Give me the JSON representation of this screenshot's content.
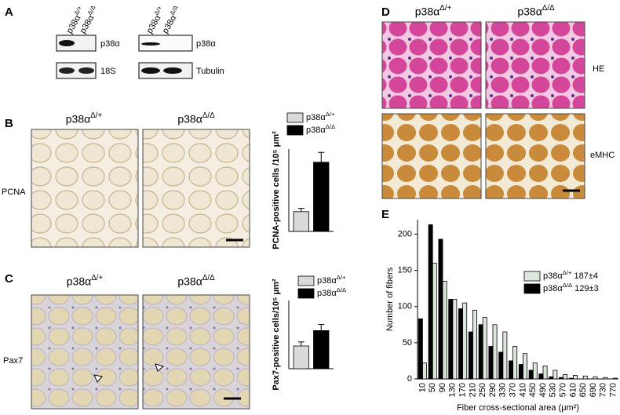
{
  "panels": {
    "A": {
      "letter": "A",
      "lanes": [
        "p38αΔ/+",
        "p38αΔ/Δ",
        "p38αΔ/+",
        "p38αΔ/Δ"
      ],
      "blots": [
        "p38α",
        "18S",
        "p38α",
        "Tubulin"
      ]
    },
    "B": {
      "letter": "B",
      "columns": [
        "p38αΔ/+",
        "p38αΔ/Δ"
      ],
      "row": "PCNA"
    },
    "C": {
      "letter": "C",
      "columns": [
        "p38αΔ/+",
        "p38αΔ/Δ"
      ],
      "row": "Pax7"
    },
    "D": {
      "letter": "D",
      "columns": [
        "p38αΔ/+",
        "p38αΔ/Δ"
      ],
      "rows": [
        "HE",
        "eMHC"
      ]
    },
    "E": {
      "letter": "E"
    }
  },
  "chart_data": [
    {
      "type": "bar",
      "y_label": "PCNA-positive cells /10⁵ μm²",
      "categories": [
        null
      ],
      "series": [
        {
          "name": "p38αΔ/+",
          "color": "#d9d9d9",
          "values": [
            12
          ],
          "errors": [
            2
          ]
        },
        {
          "name": "p38αΔ/Δ",
          "color": "#000000",
          "values": [
            42
          ],
          "errors": [
            6
          ]
        }
      ],
      "ylim": [
        0,
        50
      ]
    },
    {
      "type": "bar",
      "y_label": "Pax7-positive cells/10⁵ μm²",
      "categories": [
        null
      ],
      "series": [
        {
          "name": "p38αΔ/+",
          "color": "#d9d9d9",
          "values": [
            40
          ],
          "errors": [
            7
          ]
        },
        {
          "name": "p38αΔ/Δ",
          "color": "#000000",
          "values": [
            67
          ],
          "errors": [
            11
          ]
        }
      ],
      "ylim": [
        0,
        120
      ]
    },
    {
      "type": "bar",
      "y_label": "Number of fibers",
      "x_label": "Fiber cross-sectional area (μm²)",
      "categories": [
        10,
        50,
        90,
        130,
        170,
        210,
        250,
        290,
        330,
        370,
        410,
        450,
        490,
        530,
        570,
        610,
        650,
        690,
        730,
        770
      ],
      "series": [
        {
          "name": "p38αΔ/+ 187±4",
          "color": "#dde8dc",
          "values": [
            22,
            160,
            135,
            110,
            105,
            95,
            85,
            75,
            65,
            45,
            35,
            22,
            18,
            12,
            6,
            5,
            4,
            3,
            2,
            1
          ]
        },
        {
          "name": "p38αΔ/Δ 129±3",
          "color": "#000000",
          "values": [
            83,
            213,
            193,
            110,
            97,
            65,
            75,
            45,
            37,
            25,
            20,
            12,
            7,
            3,
            2,
            1,
            0,
            0,
            0,
            0
          ]
        }
      ],
      "ylim": [
        0,
        220
      ],
      "yticks": [
        0,
        50,
        100,
        150,
        200
      ]
    }
  ]
}
